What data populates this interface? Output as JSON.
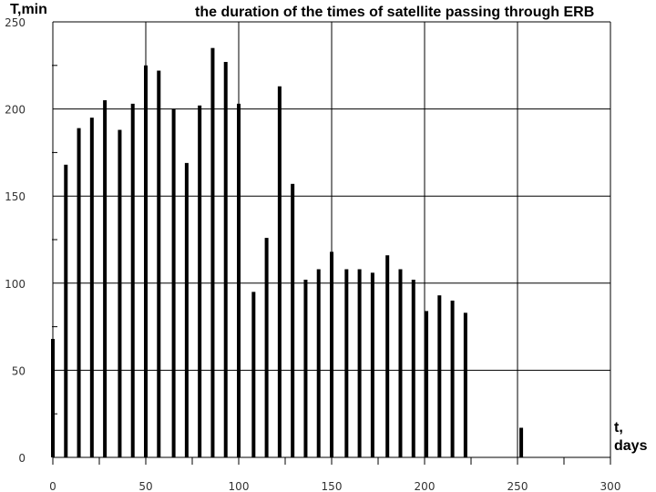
{
  "chart_data": {
    "type": "bar",
    "title": "the duration of the times of satellite passing through ERB",
    "ylabel": "T,min",
    "xlabel": "t, days",
    "xlabel_lines": [
      "t,",
      "days"
    ],
    "xlim": [
      0,
      300
    ],
    "ylim": [
      0,
      250
    ],
    "x_ticks": [
      0,
      50,
      100,
      150,
      200,
      250,
      300
    ],
    "y_ticks": [
      0,
      50,
      100,
      150,
      200,
      250
    ],
    "grid": true,
    "colors": {
      "bars": "#000000",
      "grid": "#000000",
      "axis_text": "#333333"
    },
    "series": [
      {
        "x": [
          0,
          7,
          14,
          21,
          28,
          36,
          43,
          50,
          57,
          65,
          72,
          79,
          86,
          93,
          100,
          108,
          115,
          122,
          129,
          136,
          143,
          150,
          158,
          165,
          172,
          180,
          187,
          194,
          201,
          208,
          215,
          222,
          252
        ],
        "values": [
          68,
          168,
          189,
          195,
          205,
          188,
          203,
          225,
          222,
          200,
          169,
          202,
          235,
          227,
          203,
          95,
          126,
          213,
          157,
          102,
          108,
          118,
          108,
          108,
          106,
          116,
          108,
          102,
          84,
          93,
          90,
          83,
          17
        ]
      }
    ]
  }
}
